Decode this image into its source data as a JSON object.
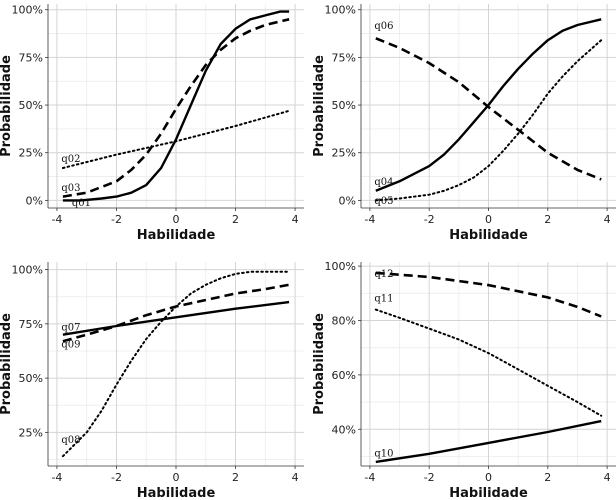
{
  "chart_data": [
    {
      "type": "line",
      "xlabel": "Habilidade",
      "ylabel": "Probabilidade",
      "xlim": [
        -4.3,
        4.3
      ],
      "ylim": [
        -0.04,
        1.03
      ],
      "xticks": [
        -4,
        -2,
        0,
        2,
        4
      ],
      "xtick_labels": [
        "-4",
        "-2",
        "0",
        "2",
        "4"
      ],
      "yticks": [
        0,
        0.25,
        0.5,
        0.75,
        1
      ],
      "ytick_labels": [
        "0%",
        "25%",
        "50%",
        "75%",
        "100%"
      ],
      "grid": true,
      "series": [
        {
          "name": "q01",
          "style": "solid",
          "x": [
            -3.8,
            -3.2,
            -2.5,
            -2.0,
            -1.5,
            -1.0,
            -0.5,
            0.0,
            0.5,
            1.0,
            1.5,
            2.0,
            2.5,
            3.0,
            3.5,
            3.8
          ],
          "y": [
            0.0,
            0.0,
            0.01,
            0.02,
            0.04,
            0.08,
            0.17,
            0.32,
            0.5,
            0.68,
            0.82,
            0.9,
            0.95,
            0.97,
            0.99,
            0.99
          ]
        },
        {
          "name": "q02",
          "style": "dotted",
          "x": [
            -3.8,
            -2.0,
            0.0,
            2.0,
            3.8
          ],
          "y": [
            0.17,
            0.24,
            0.31,
            0.39,
            0.47
          ]
        },
        {
          "name": "q03",
          "style": "dashed",
          "x": [
            -3.8,
            -3.0,
            -2.0,
            -1.5,
            -1.0,
            -0.5,
            0.0,
            0.5,
            1.0,
            1.5,
            2.0,
            2.5,
            3.0,
            3.8
          ],
          "y": [
            0.02,
            0.04,
            0.1,
            0.16,
            0.24,
            0.35,
            0.48,
            0.6,
            0.71,
            0.79,
            0.85,
            0.89,
            0.92,
            0.95
          ]
        }
      ],
      "annotations": [
        {
          "text": "q02",
          "x": -3.85,
          "y": 0.2
        },
        {
          "text": "q03",
          "x": -3.85,
          "y": 0.05
        },
        {
          "text": "q01",
          "x": -3.5,
          "y": -0.03
        }
      ]
    },
    {
      "type": "line",
      "xlabel": "Habilidade",
      "ylabel": "Probabilidade",
      "xlim": [
        -4.3,
        4.3
      ],
      "ylim": [
        -0.04,
        1.03
      ],
      "xticks": [
        -4,
        -2,
        0,
        2,
        4
      ],
      "xtick_labels": [
        "-4",
        "-2",
        "0",
        "2",
        "4"
      ],
      "yticks": [
        0,
        0.25,
        0.5,
        0.75,
        1
      ],
      "ytick_labels": [
        "0%",
        "25%",
        "50%",
        "75%",
        "100%"
      ],
      "grid": true,
      "series": [
        {
          "name": "q04",
          "style": "solid",
          "x": [
            -3.8,
            -3.0,
            -2.0,
            -1.5,
            -1.0,
            -0.5,
            0.0,
            0.5,
            1.0,
            1.5,
            2.0,
            2.5,
            3.0,
            3.8
          ],
          "y": [
            0.05,
            0.1,
            0.18,
            0.24,
            0.32,
            0.41,
            0.5,
            0.6,
            0.69,
            0.77,
            0.84,
            0.89,
            0.92,
            0.95
          ]
        },
        {
          "name": "q05",
          "style": "dotted",
          "x": [
            -3.8,
            -3.0,
            -2.0,
            -1.5,
            -1.0,
            -0.5,
            0.0,
            0.5,
            1.0,
            1.5,
            2.0,
            2.5,
            3.0,
            3.8
          ],
          "y": [
            0.0,
            0.01,
            0.03,
            0.05,
            0.08,
            0.12,
            0.18,
            0.26,
            0.35,
            0.45,
            0.56,
            0.65,
            0.73,
            0.84
          ]
        },
        {
          "name": "q06",
          "style": "dashed",
          "x": [
            -3.8,
            -3.0,
            -2.0,
            -1.0,
            0.0,
            1.0,
            2.0,
            3.0,
            3.8
          ],
          "y": [
            0.85,
            0.8,
            0.72,
            0.62,
            0.49,
            0.37,
            0.25,
            0.16,
            0.11
          ]
        }
      ],
      "annotations": [
        {
          "text": "q06",
          "x": -3.85,
          "y": 0.9
        },
        {
          "text": "q04",
          "x": -3.85,
          "y": 0.08
        },
        {
          "text": "q05",
          "x": -3.85,
          "y": -0.02
        }
      ]
    },
    {
      "type": "line",
      "xlabel": "Habilidade",
      "ylabel": "Probabilidade",
      "xlim": [
        -4.3,
        4.3
      ],
      "ylim": [
        0.095,
        1.035
      ],
      "xticks": [
        -4,
        -2,
        0,
        2,
        4
      ],
      "xtick_labels": [
        "-4",
        "-2",
        "0",
        "2",
        "4"
      ],
      "yticks": [
        0.25,
        0.5,
        0.75,
        1
      ],
      "ytick_labels": [
        "25%",
        "50%",
        "75%",
        "100%"
      ],
      "grid": true,
      "series": [
        {
          "name": "q07",
          "style": "solid",
          "x": [
            -3.8,
            -2.0,
            0.0,
            2.0,
            3.8
          ],
          "y": [
            0.7,
            0.74,
            0.78,
            0.82,
            0.85
          ]
        },
        {
          "name": "q08",
          "style": "dotted",
          "x": [
            -3.8,
            -3.0,
            -2.5,
            -2.0,
            -1.5,
            -1.0,
            -0.5,
            0.0,
            0.5,
            1.0,
            1.5,
            2.0,
            2.5,
            3.0,
            3.8
          ],
          "y": [
            0.14,
            0.25,
            0.35,
            0.47,
            0.58,
            0.68,
            0.76,
            0.83,
            0.89,
            0.93,
            0.96,
            0.98,
            0.99,
            0.99,
            0.99
          ]
        },
        {
          "name": "q09",
          "style": "dashed",
          "x": [
            -3.8,
            -3.0,
            -2.0,
            -1.0,
            0.0,
            1.0,
            2.0,
            3.0,
            3.8
          ],
          "y": [
            0.67,
            0.7,
            0.74,
            0.79,
            0.83,
            0.86,
            0.89,
            0.91,
            0.93
          ]
        }
      ],
      "annotations": [
        {
          "text": "q07",
          "x": -3.85,
          "y": 0.72
        },
        {
          "text": "q09",
          "x": -3.85,
          "y": 0.64
        },
        {
          "text": "q08",
          "x": -3.85,
          "y": 0.2
        }
      ]
    },
    {
      "type": "line",
      "xlabel": "Habilidade",
      "ylabel": "Probabilidade",
      "xlim": [
        -4.3,
        4.3
      ],
      "ylim": [
        0.265,
        1.015
      ],
      "xticks": [
        -4,
        -2,
        0,
        2,
        4
      ],
      "xtick_labels": [
        "-4",
        "-2",
        "0",
        "2",
        "4"
      ],
      "yticks": [
        0.4,
        0.6,
        0.8,
        1
      ],
      "ytick_labels": [
        "40%",
        "60%",
        "80%",
        "100%"
      ],
      "grid": true,
      "series": [
        {
          "name": "q10",
          "style": "solid",
          "x": [
            -3.8,
            -2.0,
            0.0,
            2.0,
            3.8
          ],
          "y": [
            0.28,
            0.31,
            0.35,
            0.39,
            0.43
          ]
        },
        {
          "name": "q11",
          "style": "dotted",
          "x": [
            -3.8,
            -3.0,
            -2.0,
            -1.0,
            0.0,
            1.0,
            2.0,
            3.0,
            3.8
          ],
          "y": [
            0.84,
            0.81,
            0.77,
            0.73,
            0.68,
            0.62,
            0.56,
            0.5,
            0.45
          ]
        },
        {
          "name": "q12",
          "style": "dashed",
          "x": [
            -3.8,
            -2.0,
            0.0,
            2.0,
            3.0,
            3.8
          ],
          "y": [
            0.975,
            0.96,
            0.93,
            0.885,
            0.85,
            0.815
          ]
        }
      ],
      "annotations": [
        {
          "text": "q12",
          "x": -3.85,
          "y": 0.96
        },
        {
          "text": "q11",
          "x": -3.85,
          "y": 0.87
        },
        {
          "text": "q10",
          "x": -3.85,
          "y": 0.3
        }
      ]
    }
  ]
}
